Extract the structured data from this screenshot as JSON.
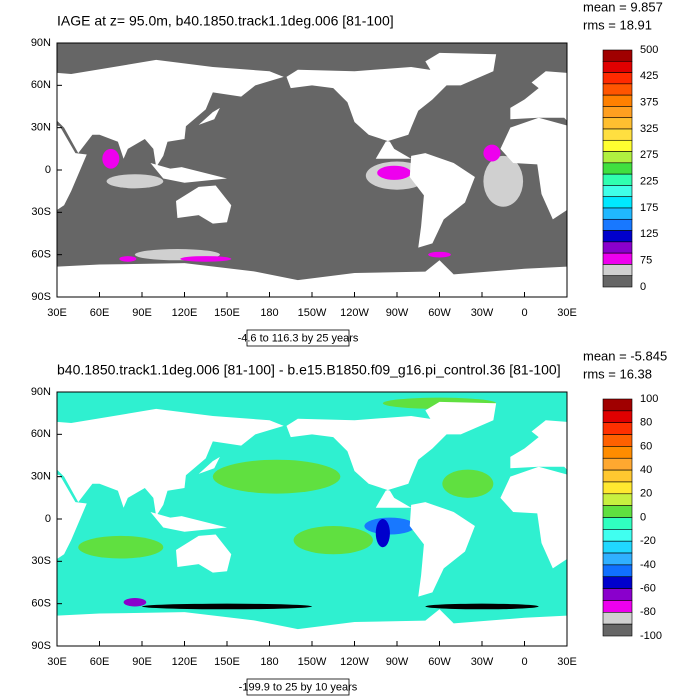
{
  "panels": [
    {
      "title": "IAGE at z=  95.0m, b40.1850.track1.1deg.006 [81-100]",
      "mean": "mean = 9.857",
      "rms": "rms = 18.91",
      "range_note": "-4.6 to 116.3 by 25 years",
      "colorbar": {
        "colors": [
          "#a00000",
          "#e00000",
          "#ff2a00",
          "#ff5500",
          "#ff8000",
          "#ff9f20",
          "#ffbf30",
          "#ffdf40",
          "#ffff30",
          "#b0f040",
          "#40e040",
          "#30ffb0",
          "#40ffe8",
          "#00e8ff",
          "#20b8ff",
          "#1878ff",
          "#0000cc",
          "#8a00cc",
          "#ee00ee",
          "#d0d0d0",
          "#666666"
        ],
        "labels": [
          500,
          425,
          375,
          325,
          275,
          225,
          175,
          125,
          75,
          0
        ]
      }
    },
    {
      "title": "b40.1850.track1.1deg.006 [81-100] - b.e15.B1850.f09_g16.pi_control.36 [81-100]",
      "mean": "mean = -5.845",
      "rms": "rms = 16.38",
      "range_note": "-199.9 to 25 by 10 years",
      "colorbar": {
        "colors": [
          "#a00000",
          "#e00000",
          "#ff3000",
          "#ff6000",
          "#ff8c00",
          "#ffa830",
          "#ffc830",
          "#ffe830",
          "#c8f040",
          "#60e040",
          "#30ffc0",
          "#40fff0",
          "#20d8ff",
          "#30b0ff",
          "#1070ff",
          "#0000cc",
          "#8a00cc",
          "#ee00ee",
          "#d0d0d0",
          "#666666"
        ],
        "labels": [
          100,
          80,
          60,
          40,
          20,
          0,
          -20,
          -40,
          -60,
          -80,
          -100
        ]
      }
    }
  ],
  "lat_labels": [
    "90N",
    "60N",
    "30N",
    "0",
    "30S",
    "60S",
    "90S"
  ],
  "lon_labels": [
    "30E",
    "60E",
    "90E",
    "120E",
    "150E",
    "180",
    "150W",
    "120W",
    "90W",
    "60W",
    "30W",
    "0",
    "30E"
  ]
}
